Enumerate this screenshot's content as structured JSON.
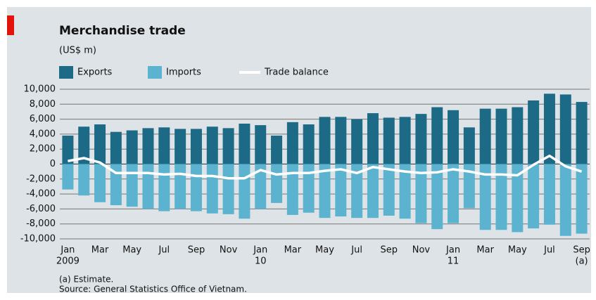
{
  "chart_data": {
    "type": "bar",
    "title": "Merchandise trade",
    "subtitle": "(US$ m)",
    "categories": [
      "Jan",
      null,
      "Mar",
      null,
      "May",
      null,
      "Jul",
      null,
      "Sep",
      null,
      "Nov",
      null,
      "Jan",
      null,
      "Mar",
      null,
      "May",
      null,
      "Jul",
      null,
      "Sep",
      null,
      "Nov",
      null,
      "Jan",
      null,
      "Mar",
      null,
      "May",
      null,
      "Jul",
      null,
      "Sep"
    ],
    "category_sublabels": [
      "2009",
      null,
      null,
      null,
      null,
      null,
      null,
      null,
      null,
      null,
      null,
      null,
      "10",
      null,
      null,
      null,
      null,
      null,
      null,
      null,
      null,
      null,
      null,
      null,
      "11",
      null,
      null,
      null,
      null,
      null,
      null,
      null,
      "(a)"
    ],
    "series": [
      {
        "name": "Exports",
        "color": "#1d6a87",
        "kind": "bar",
        "values": [
          3800,
          5000,
          5300,
          4300,
          4500,
          4800,
          4900,
          4700,
          4700,
          5000,
          4800,
          5400,
          5200,
          3800,
          5600,
          5300,
          6300,
          6300,
          6000,
          6800,
          6200,
          6300,
          6700,
          7600,
          7200,
          4900,
          7400,
          7400,
          7600,
          8500,
          9400,
          9300,
          8300
        ]
      },
      {
        "name": "Imports",
        "color": "#5bb3d0",
        "kind": "bar",
        "values": [
          -3400,
          -4200,
          -5100,
          -5500,
          -5700,
          -6000,
          -6300,
          -6000,
          -6300,
          -6600,
          -6700,
          -7300,
          -6000,
          -5200,
          -6800,
          -6500,
          -7200,
          -7000,
          -7200,
          -7200,
          -6900,
          -7300,
          -7900,
          -8700,
          -7900,
          -5900,
          -8800,
          -8800,
          -9100,
          -8600,
          -8100,
          -9600,
          -9300
        ]
      },
      {
        "name": "Trade balance",
        "color": "#ffffff",
        "kind": "line",
        "values": [
          400,
          800,
          200,
          -1200,
          -1200,
          -1200,
          -1400,
          -1300,
          -1600,
          -1600,
          -1900,
          -1900,
          -800,
          -1400,
          -1200,
          -1200,
          -900,
          -700,
          -1200,
          -400,
          -700,
          -1000,
          -1200,
          -1100,
          -700,
          -1000,
          -1400,
          -1400,
          -1500,
          -100,
          1100,
          -300,
          -1000
        ]
      }
    ],
    "ylim": [
      -10000,
      10000
    ],
    "yticks": [
      {
        "value": 10000,
        "label": "10,000"
      },
      {
        "value": 8000,
        "label": "8,000"
      },
      {
        "value": 6000,
        "label": "6,000"
      },
      {
        "value": 4000,
        "label": "4,000"
      },
      {
        "value": 2000,
        "label": "2,000"
      },
      0,
      {
        "value": -2000,
        "label": "-2,000"
      },
      {
        "value": -4000,
        "label": "-4,000"
      },
      {
        "value": -6000,
        "label": "-6,000"
      },
      {
        "value": -8000,
        "label": "-8,000"
      },
      {
        "value": -10000,
        "label": "-10,000"
      }
    ],
    "grid": true,
    "notes": [
      "(a) Estimate.",
      "Source: General Statistics Office of Vietnam."
    ]
  }
}
